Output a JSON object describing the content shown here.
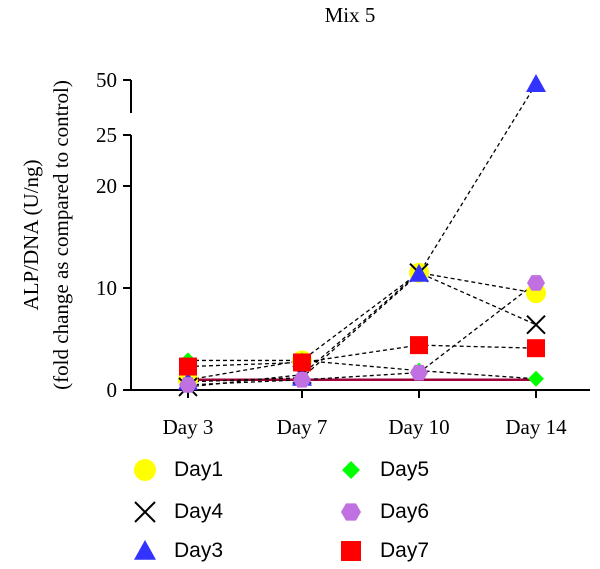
{
  "chart_data": {
    "type": "scatter",
    "title": "Mix 5",
    "ylabel_line1": "ALP/DNA (U/ng)",
    "ylabel_line2": "(fold change as compared  to control)",
    "categories": [
      "Day 3",
      "Day 7",
      "Day 10",
      "Day 14"
    ],
    "y_ticks_lower": [
      "0",
      "10",
      "20"
    ],
    "y_ticks_upper": [
      "25",
      "50"
    ],
    "ylim_lower": [
      0,
      25
    ],
    "ylim_upper": [
      25,
      50
    ],
    "series": [
      {
        "name": "Day1",
        "marker": "circle",
        "color": "#ffff00",
        "values": [
          1.0,
          2.9,
          11.5,
          9.5
        ]
      },
      {
        "name": "Day4",
        "marker": "x",
        "color": "#000000",
        "values": [
          0.3,
          1.5,
          11.5,
          6.4
        ]
      },
      {
        "name": "Day3",
        "marker": "triangle",
        "color": "#3333ff",
        "values": [
          0.8,
          1.2,
          11.4,
          47.0
        ]
      },
      {
        "name": "Day5",
        "marker": "diamond",
        "color": "#00ff00",
        "values": [
          2.9,
          2.9,
          1.9,
          1.1
        ]
      },
      {
        "name": "Day6",
        "marker": "hexagon",
        "color": "#c070e0",
        "values": [
          0.5,
          1.0,
          1.7,
          10.5
        ]
      },
      {
        "name": "Day7",
        "marker": "square",
        "color": "#ff0000",
        "values": [
          2.3,
          2.7,
          4.4,
          4.1
        ]
      }
    ],
    "baseline": {
      "color": "#a0003a",
      "values": [
        1.0,
        1.0,
        1.0,
        1.0
      ]
    },
    "legend_position": "bottom"
  }
}
